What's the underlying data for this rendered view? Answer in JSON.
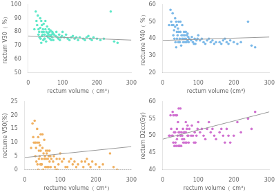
{
  "chart_data": [
    {
      "type": "scatter",
      "xlabel": "rectum volume（ cm³）",
      "ylabel": "rectum V30（ %）",
      "xlim": [
        0,
        300
      ],
      "xticks": [
        0,
        100,
        200,
        300
      ],
      "ylim": [
        50,
        100
      ],
      "yticks": [
        50,
        60,
        70,
        80,
        90,
        100
      ],
      "grid": false,
      "series": [
        {
          "type": "scatter",
          "color": "#5ee8c8",
          "x": [
            18,
            22,
            24,
            26,
            28,
            30,
            30,
            32,
            33,
            35,
            35,
            36,
            38,
            38,
            40,
            40,
            40,
            42,
            43,
            44,
            45,
            45,
            47,
            48,
            48,
            50,
            50,
            52,
            53,
            55,
            55,
            57,
            58,
            60,
            60,
            62,
            63,
            65,
            65,
            67,
            68,
            70,
            70,
            72,
            73,
            75,
            80,
            82,
            85,
            88,
            90,
            92,
            95,
            98,
            100,
            105,
            110,
            115,
            120,
            125,
            130,
            135,
            140,
            145,
            150,
            160,
            165,
            170,
            175,
            180,
            185,
            190,
            200,
            210,
            220,
            240,
            250,
            260
          ],
          "values": [
            82,
            95,
            88,
            85,
            92,
            82,
            78,
            80,
            76,
            83,
            90,
            75,
            72,
            88,
            80,
            77,
            85,
            78,
            82,
            74,
            80,
            86,
            75,
            75,
            78,
            82,
            88,
            73,
            80,
            77,
            84,
            79,
            76,
            82,
            78,
            80,
            75,
            77,
            81,
            74,
            78,
            80,
            76,
            79,
            74,
            78,
            77,
            80,
            76,
            75,
            78,
            74,
            76,
            77,
            80,
            76,
            78,
            75,
            74,
            76,
            77,
            75,
            76,
            74,
            76,
            75,
            74,
            76,
            77,
            75,
            74,
            76,
            75,
            74,
            75,
            95,
            73,
            72
          ]
        },
        {
          "type": "line",
          "color": "#999999",
          "line_style": "solid",
          "x": [
            0,
            300
          ],
          "values": [
            77,
            74
          ]
        }
      ]
    },
    {
      "type": "scatter",
      "xlabel": "rectum volume (cm³)",
      "ylabel": "rectume V40（ %）",
      "xlim": [
        0,
        300
      ],
      "xticks": [
        0,
        100,
        200,
        300
      ],
      "ylim": [
        20,
        60
      ],
      "yticks": [
        20,
        30,
        40,
        50,
        60
      ],
      "grid": false,
      "series": [
        {
          "type": "scatter",
          "color": "#7ab8e8",
          "x": [
            18,
            22,
            24,
            26,
            28,
            30,
            30,
            32,
            33,
            35,
            35,
            36,
            38,
            38,
            40,
            40,
            40,
            42,
            43,
            44,
            45,
            45,
            47,
            48,
            48,
            50,
            50,
            52,
            53,
            55,
            55,
            57,
            58,
            60,
            60,
            62,
            63,
            65,
            65,
            67,
            68,
            70,
            70,
            72,
            73,
            75,
            80,
            82,
            85,
            88,
            90,
            92,
            95,
            98,
            100,
            105,
            110,
            115,
            120,
            125,
            130,
            135,
            140,
            145,
            150,
            160,
            165,
            170,
            175,
            180,
            185,
            190,
            200,
            210,
            220,
            240,
            250,
            260
          ],
          "values": [
            48,
            57,
            50,
            48,
            55,
            48,
            42,
            45,
            40,
            47,
            52,
            38,
            35,
            50,
            44,
            40,
            48,
            42,
            46,
            38,
            44,
            50,
            38,
            38,
            40,
            44,
            50,
            36,
            42,
            40,
            48,
            42,
            38,
            44,
            40,
            42,
            38,
            40,
            44,
            38,
            42,
            43,
            39,
            41,
            38,
            40,
            39,
            41,
            38,
            37,
            40,
            37,
            39,
            40,
            42,
            39,
            40,
            38,
            37,
            39,
            40,
            38,
            39,
            37,
            38,
            38,
            37,
            39,
            40,
            38,
            37,
            39,
            38,
            37,
            38,
            50,
            36,
            35
          ]
        },
        {
          "type": "line",
          "color": "#999999",
          "line_style": "solid",
          "x": [
            0,
            300
          ],
          "values": [
            39,
            41
          ]
        }
      ]
    },
    {
      "type": "scatter",
      "xlabel": "rectume volume（ cm³）",
      "ylabel": "rectume V50(%)",
      "xlim": [
        0,
        300
      ],
      "xticks": [
        0,
        100,
        200,
        300
      ],
      "ylim": [
        0,
        25
      ],
      "yticks": [
        0,
        5,
        10,
        15,
        20,
        25
      ],
      "grid": false,
      "series": [
        {
          "type": "scatter",
          "color": "#f0b060",
          "x": [
            18,
            22,
            24,
            26,
            28,
            30,
            30,
            32,
            33,
            35,
            35,
            36,
            38,
            38,
            40,
            40,
            40,
            42,
            43,
            44,
            45,
            45,
            47,
            48,
            48,
            50,
            50,
            52,
            53,
            55,
            55,
            57,
            58,
            60,
            60,
            62,
            63,
            65,
            65,
            67,
            68,
            70,
            70,
            72,
            73,
            75,
            80,
            82,
            85,
            88,
            90,
            92,
            95,
            98,
            100,
            105,
            110,
            115,
            120,
            125,
            130,
            135,
            140,
            145,
            150,
            160,
            165,
            170,
            175,
            180,
            185,
            190,
            200,
            210,
            220,
            240,
            250,
            260
          ],
          "values": [
            8,
            17,
            12,
            10,
            18,
            10,
            5,
            8,
            3,
            10,
            15,
            2,
            0,
            12,
            7,
            4,
            10,
            5,
            9,
            2,
            7,
            13,
            2,
            2,
            4,
            8,
            13,
            0,
            6,
            4,
            11,
            5,
            1,
            7,
            4,
            6,
            1,
            4,
            7,
            1,
            5,
            7,
            3,
            5,
            1,
            4,
            3,
            5,
            1,
            0,
            4,
            0,
            2,
            4,
            6,
            3,
            4,
            1,
            1,
            3,
            4,
            2,
            3,
            1,
            2,
            3,
            1,
            3,
            4,
            2,
            1,
            3,
            2,
            1,
            2,
            6,
            1,
            0
          ]
        },
        {
          "type": "line",
          "color": "#999999",
          "line_style": "solid",
          "x": [
            0,
            300
          ],
          "values": [
            4.5,
            8.5
          ]
        },
        {
          "type": "line",
          "color": "#808080",
          "line_style": "dotted",
          "x": [
            0,
            300
          ],
          "values": [
            0,
            0
          ]
        }
      ]
    },
    {
      "type": "scatter",
      "xlabel": "rectum volume（ cm³）",
      "ylabel": "rectum D2cc(Gy)",
      "xlim": [
        0,
        300
      ],
      "xticks": [
        0,
        100,
        200,
        300
      ],
      "ylim": [
        40,
        60
      ],
      "yticks": [
        40,
        45,
        50,
        55,
        60
      ],
      "grid": false,
      "series": [
        {
          "type": "scatter",
          "color": "#d070d0",
          "x": [
            18,
            20,
            22,
            24,
            26,
            28,
            28,
            30,
            30,
            32,
            33,
            35,
            35,
            36,
            38,
            38,
            40,
            40,
            40,
            42,
            43,
            44,
            45,
            45,
            47,
            48,
            48,
            50,
            50,
            52,
            53,
            55,
            55,
            57,
            58,
            60,
            60,
            62,
            63,
            65,
            65,
            67,
            68,
            70,
            70,
            72,
            73,
            75,
            80,
            82,
            85,
            88,
            90,
            92,
            95,
            98,
            100,
            105,
            110,
            115,
            120,
            125,
            130,
            135,
            140,
            145,
            150,
            160,
            165,
            170,
            175,
            180,
            185,
            190,
            200,
            210,
            220,
            240,
            250,
            260
          ],
          "values": [
            50,
            50,
            56,
            52,
            50,
            57,
            50,
            56,
            48,
            51,
            47,
            51,
            56,
            48,
            47,
            56,
            52,
            49,
            56,
            50,
            54,
            47,
            51,
            58,
            47,
            47,
            51,
            50,
            58,
            47,
            51,
            50,
            49,
            52,
            48,
            51,
            49,
            51,
            48,
            51,
            54,
            48,
            52,
            53,
            50,
            50,
            48,
            52,
            50,
            53,
            50,
            48,
            51,
            48,
            50,
            52,
            54,
            51,
            52,
            50,
            49,
            52,
            54,
            51,
            52,
            50,
            49,
            51,
            52,
            50,
            48,
            52,
            50,
            48,
            50,
            54,
            51,
            55,
            52,
            57
          ]
        },
        {
          "type": "line",
          "color": "#999999",
          "line_style": "solid",
          "x": [
            0,
            300
          ],
          "values": [
            49,
            57
          ]
        }
      ]
    }
  ]
}
